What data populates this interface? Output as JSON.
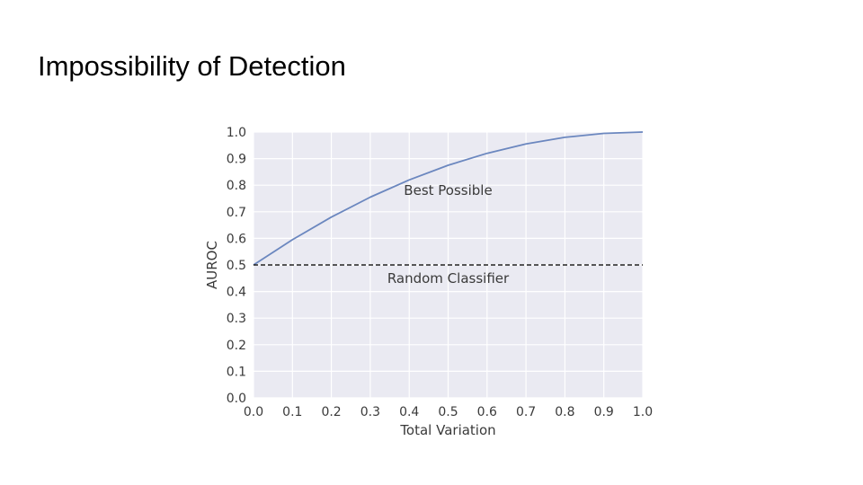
{
  "slide": {
    "title": "Impossibility of Detection"
  },
  "chart_data": {
    "type": "line",
    "title": "",
    "xlabel": "Total Variation",
    "ylabel": "AUROC",
    "xlim": [
      0,
      1
    ],
    "ylim": [
      0,
      1
    ],
    "grid": true,
    "xticks": [
      0,
      0.1,
      0.2,
      0.3,
      0.4,
      0.5,
      0.6,
      0.7,
      0.8,
      0.9,
      1.0
    ],
    "yticks": [
      0,
      0.1,
      0.2,
      0.3,
      0.4,
      0.5,
      0.6,
      0.7,
      0.8,
      0.9,
      1.0
    ],
    "xtick_labels": [
      "0.0",
      "0.1",
      "0.2",
      "0.3",
      "0.4",
      "0.5",
      "0.6",
      "0.7",
      "0.8",
      "0.9",
      "1.0"
    ],
    "ytick_labels": [
      "0.0",
      "0.1",
      "0.2",
      "0.3",
      "0.4",
      "0.5",
      "0.6",
      "0.7",
      "0.8",
      "0.9",
      "1.0"
    ],
    "series": [
      {
        "name": "Best Possible",
        "style": "solid",
        "color": "#6b87bf",
        "x": [
          0,
          0.1,
          0.2,
          0.3,
          0.4,
          0.5,
          0.6,
          0.7,
          0.8,
          0.9,
          1.0
        ],
        "y": [
          0.5,
          0.595,
          0.68,
          0.755,
          0.82,
          0.875,
          0.92,
          0.955,
          0.98,
          0.995,
          1.0
        ]
      },
      {
        "name": "Random Classifier",
        "style": "dashed",
        "color": "#222222",
        "x": [
          0,
          1.0
        ],
        "y": [
          0.5,
          0.5
        ]
      }
    ],
    "annotations": [
      {
        "text": "Best Possible",
        "x": 0.5,
        "y": 0.78
      },
      {
        "text": "Random Classifier",
        "x": 0.5,
        "y": 0.45
      }
    ],
    "colors": {
      "plot_bg": "#eaeaf2",
      "grid": "#ffffff",
      "text": "#3a3a3a"
    }
  }
}
